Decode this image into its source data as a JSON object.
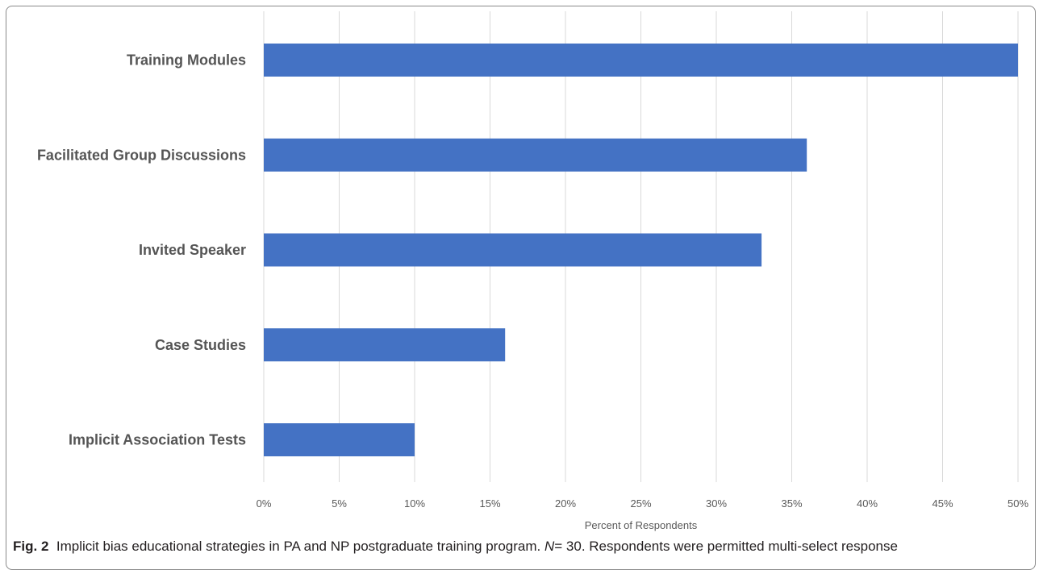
{
  "chart_data": {
    "type": "bar",
    "orientation": "horizontal",
    "categories": [
      "Training Modules",
      "Facilitated Group Discussions",
      "Invited Speaker",
      "Case Studies",
      "Implicit Association Tests"
    ],
    "values": [
      50,
      36,
      33,
      16,
      10
    ],
    "value_unit": "%",
    "xlabel": "Percent of Respondents",
    "ylabel": "",
    "xlim": [
      0,
      50
    ],
    "x_ticks": [
      0,
      5,
      10,
      15,
      20,
      25,
      30,
      35,
      40,
      45,
      50
    ],
    "x_tick_labels": [
      "0%",
      "5%",
      "10%",
      "15%",
      "20%",
      "25%",
      "30%",
      "35%",
      "40%",
      "45%",
      "50%"
    ],
    "grid": "vertical",
    "legend": "none",
    "bar_color": "#4472c4",
    "grid_color": "#d9d9d9"
  },
  "caption": {
    "fig_label": "Fig. 2",
    "text_before_n": "Implicit bias educational strategies in PA and NP postgraduate training program.",
    "n_var": "N",
    "text_after_n": "= 30. Respondents were permitted multi-select response"
  }
}
